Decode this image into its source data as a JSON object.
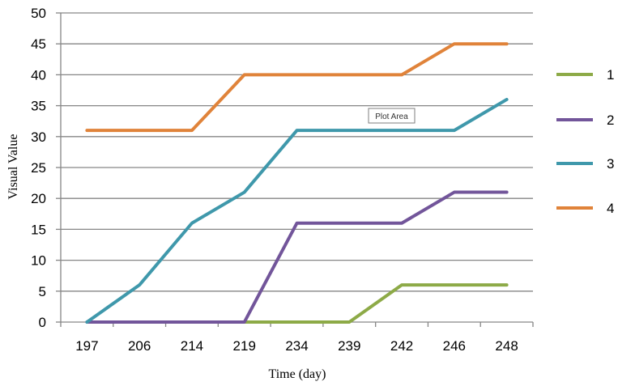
{
  "chart_data": {
    "type": "line",
    "categories": [
      "197",
      "206",
      "214",
      "219",
      "234",
      "239",
      "242",
      "246",
      "248"
    ],
    "xlabel": "Time (day)",
    "ylabel": "Visual Value",
    "ylim": [
      0,
      50
    ],
    "yticks": [
      0,
      5,
      10,
      15,
      20,
      25,
      30,
      35,
      40,
      45,
      50
    ],
    "grid": true,
    "legend_position": "right",
    "series": [
      {
        "name": "1",
        "color": "#8DAA47",
        "values": [
          null,
          null,
          null,
          0,
          0,
          0,
          6,
          6,
          6
        ]
      },
      {
        "name": "2",
        "color": "#72559A",
        "values": [
          0,
          0,
          0,
          0,
          16,
          16,
          16,
          21,
          21
        ]
      },
      {
        "name": "3",
        "color": "#3F98AB",
        "values": [
          0,
          6,
          16,
          21,
          31,
          31,
          31,
          31,
          36
        ]
      },
      {
        "name": "4",
        "color": "#E0833A",
        "values": [
          31,
          31,
          31,
          40,
          40,
          40,
          40,
          45,
          45
        ]
      }
    ],
    "tooltip": "Plot Area"
  }
}
